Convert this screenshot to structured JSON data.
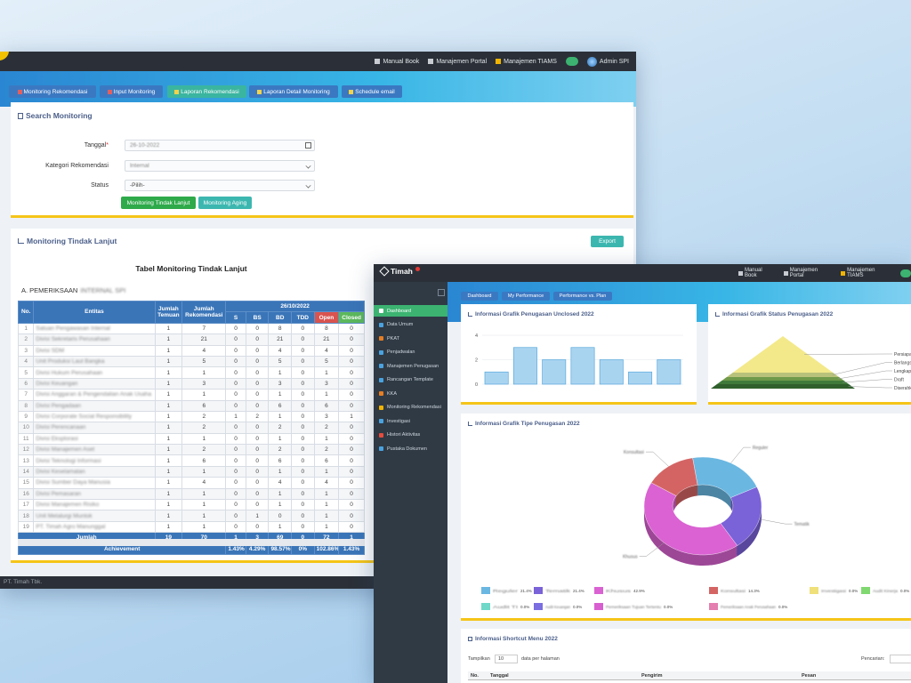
{
  "back_window": {
    "topbar": {
      "links": [
        "Manual Book",
        "Manajemen Portal",
        "Manajemen TIAMS"
      ],
      "user": "Admin SPI"
    },
    "tabs": [
      "Monitoring Rekomendasi",
      "Input Monitoring",
      "Laporan Rekomendasi",
      "Laporan Detail Monitoring",
      "Schedule email"
    ],
    "search": {
      "title": "Search Monitoring",
      "fields": [
        {
          "label": "Tanggal",
          "required": "*",
          "value": "26-10-2022"
        },
        {
          "label": "Kategori Rekomendasi",
          "value": "Internal"
        },
        {
          "label": "Status",
          "value": "-Pilih-"
        }
      ],
      "buttons": [
        "Monitoring Tindak Lanjut",
        "Monitoring Aging"
      ]
    },
    "monitoring": {
      "title": "Monitoring Tindak Lanjut",
      "export": "Export",
      "table_title": "Tabel Monitoring Tindak Lanjut",
      "section": "A. PEMERIKSAAN",
      "section_unit": "INTERNAL SPI",
      "table": {
        "header": [
          "No.",
          "Entitas",
          "Jumlah Temuan",
          "Jumlah Rekomendasi"
        ],
        "date": "26/10/2022",
        "status_header": [
          "S",
          "BS",
          "BD",
          "TDD",
          "Open",
          "Closed"
        ],
        "rows": [
          [
            1,
            "Satuan Pengawasan Internal",
            1,
            7,
            0,
            0,
            8,
            0,
            8,
            0
          ],
          [
            2,
            "Divisi Sekretaris Perusahaan",
            1,
            21,
            0,
            0,
            21,
            0,
            21,
            0
          ],
          [
            3,
            "Divisi SDM",
            1,
            4,
            0,
            0,
            4,
            0,
            4,
            0
          ],
          [
            4,
            "Unit Produksi Laut Bangka",
            1,
            5,
            0,
            0,
            5,
            0,
            5,
            0
          ],
          [
            5,
            "Divisi Hukum Perusahaan",
            1,
            1,
            0,
            0,
            1,
            0,
            1,
            0
          ],
          [
            6,
            "Divisi Keuangan",
            1,
            3,
            0,
            0,
            3,
            0,
            3,
            0
          ],
          [
            7,
            "Divisi Anggaran & Pengendalian Anak Usaha",
            1,
            1,
            0,
            0,
            1,
            0,
            1,
            0
          ],
          [
            8,
            "Divisi Pengadaan",
            1,
            6,
            0,
            0,
            6,
            0,
            6,
            0
          ],
          [
            9,
            "Divisi Corporate Social Responsibility",
            1,
            2,
            1,
            2,
            1,
            0,
            3,
            1
          ],
          [
            10,
            "Divisi Perencanaan",
            1,
            2,
            0,
            0,
            2,
            0,
            2,
            0
          ],
          [
            11,
            "Divisi Eksplorasi",
            1,
            1,
            0,
            0,
            1,
            0,
            1,
            0
          ],
          [
            12,
            "Divisi Manajemen Aset",
            1,
            2,
            0,
            0,
            2,
            0,
            2,
            0
          ],
          [
            13,
            "Divisi Teknologi Informasi",
            1,
            6,
            0,
            0,
            6,
            0,
            6,
            0
          ],
          [
            14,
            "Divisi Keselamatan",
            1,
            1,
            0,
            0,
            1,
            0,
            1,
            0
          ],
          [
            15,
            "Divisi Sumber Daya Manusia",
            1,
            4,
            0,
            0,
            4,
            0,
            4,
            0
          ],
          [
            16,
            "Divisi Pemasaran",
            1,
            1,
            0,
            0,
            1,
            0,
            1,
            0
          ],
          [
            17,
            "Divisi Manajemen Risiko",
            1,
            1,
            0,
            0,
            1,
            0,
            1,
            0
          ],
          [
            18,
            "Unit Metalurgi Muntok",
            1,
            1,
            0,
            1,
            0,
            0,
            1,
            0
          ],
          [
            19,
            "PT. Timah Agro Manunggal",
            1,
            1,
            0,
            0,
            1,
            0,
            1,
            0
          ]
        ],
        "total": {
          "label": "Jumlah",
          "values": [
            19,
            70,
            1,
            3,
            69,
            0,
            72,
            1
          ]
        },
        "achievement": {
          "label": "Achievement",
          "values": [
            "1.43%",
            "4.29%",
            "98.57%",
            "0%",
            "102.86%",
            "1.43%"
          ]
        }
      }
    },
    "footer": "PT. Timah Tbk."
  },
  "front_window": {
    "logo": "Timah",
    "topbar": {
      "links": [
        "Manual Book",
        "Manajemen Portal",
        "Manajemen TIAMS"
      ]
    },
    "sidebar": [
      "Dashboard",
      "Data Umum",
      "PKAT",
      "Penjadwalan",
      "Manajemen Penugasan",
      "Rancangan Template",
      "KKA",
      "Monitoring Rekomendasi",
      "Investigasi",
      "Histori Aktivitas",
      "Pustaka Dokumen"
    ],
    "tabs": [
      "Dashboard",
      "My Performance",
      "Performance vs. Plan"
    ],
    "charts": [
      {
        "type": "bar",
        "title": "Informasi Grafik Penugasan Unclosed 2022",
        "values": [
          1,
          3,
          2,
          3,
          2,
          1,
          2
        ],
        "color": "#a9d4f0",
        "ylim": [
          0,
          4
        ],
        "yticks": [
          0,
          2,
          4
        ],
        "grid": true
      },
      {
        "type": "pyramid",
        "title": "Informasi Grafik Status Penugasan 2022",
        "categories": [
          "Persiapan",
          "Berlangsung",
          "Lengkap",
          "Draft",
          "Diserahkan"
        ],
        "colors": [
          "#f3e98a",
          "#b9c27a",
          "#6f9a4a",
          "#3f7a3a",
          "#2f5f2c"
        ]
      },
      {
        "type": "pie",
        "title": "Informasi Grafik Tipe Penugasan 2022",
        "categories": [
          "Reguler",
          "Tematik",
          "Khusus",
          "Konsultasi",
          "Investigasi",
          "Audit Kinerja",
          "Audit TI",
          "Audit Keuangan",
          "Pemeriksaan Tujuan Tertentu",
          "Pemeriksaan Anak Perusahaan"
        ],
        "colors": [
          "#6ab7e2",
          "#7a62d8",
          "#da62d2",
          "#d46464",
          "#efe07a",
          "#80d870",
          "#6fd8c8",
          "#7b6ee0",
          "#d85fd0",
          "#e47fb0"
        ],
        "values": [
          21.4,
          21.4,
          42.9,
          14.3,
          0,
          0,
          0,
          0,
          0,
          0
        ],
        "value_labels": [
          "21.4%",
          "21.4%",
          "42.9%",
          "14.3%",
          "0.0%",
          "0.0%",
          "0.0%",
          "0.0%",
          "0.0%",
          "0.0%"
        ]
      }
    ],
    "shortcut": {
      "title": "Informasi Shortcut Menu 2022",
      "show": "Tampilkan",
      "page_size": "10",
      "per_page": "data per halaman",
      "search": "Pencarian:",
      "headers": [
        "No.",
        "Tanggal",
        "Pengirim",
        "Pesan"
      ]
    }
  }
}
